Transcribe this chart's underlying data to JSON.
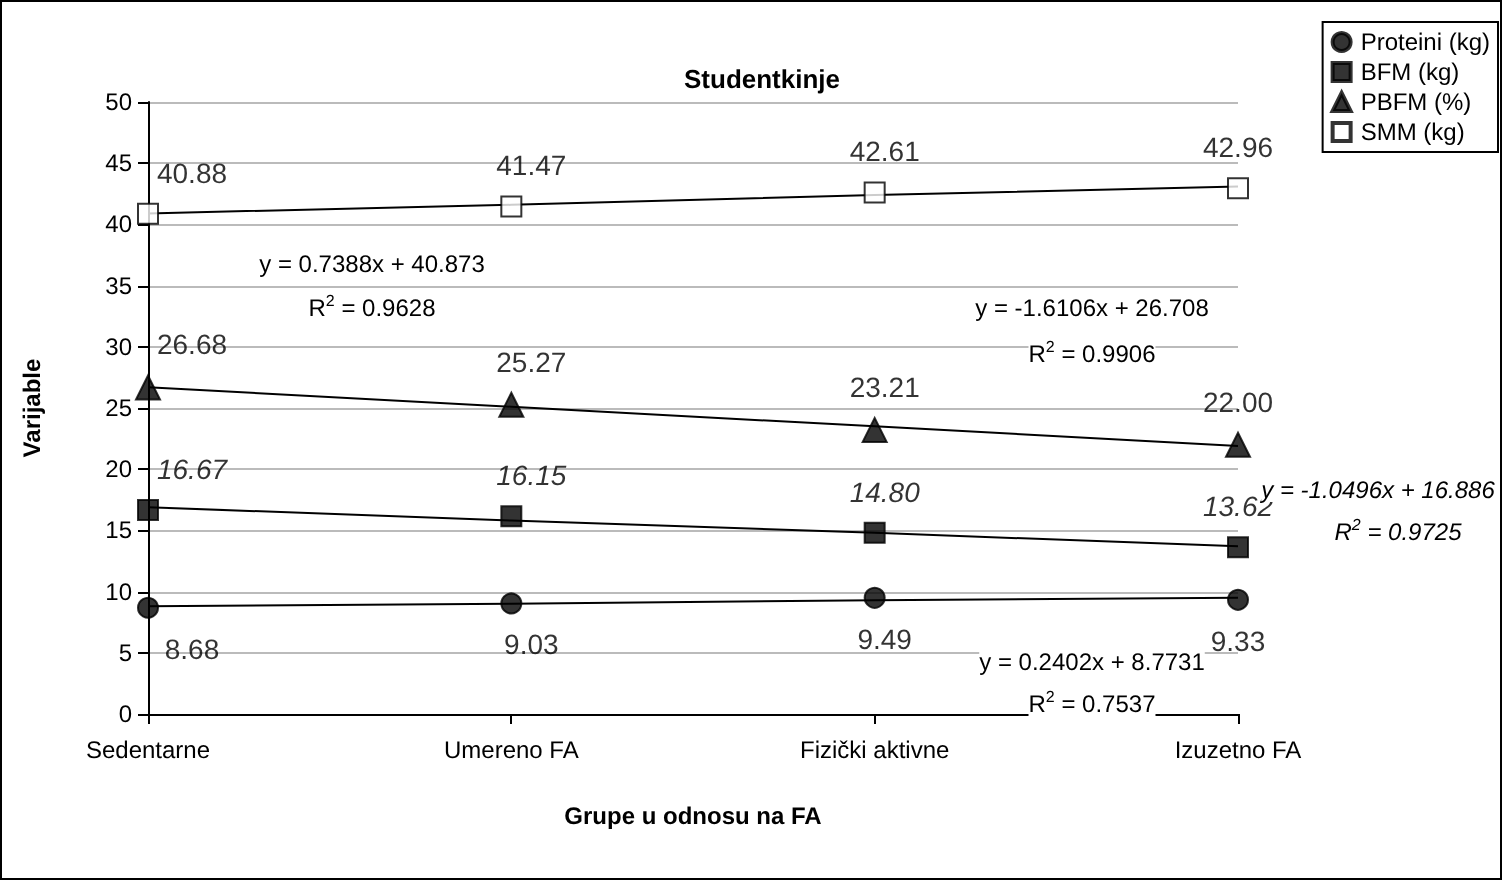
{
  "chart_data": {
    "type": "scatter",
    "title": "Studentkinje",
    "xlabel": "Grupe u odnosu na FA",
    "ylabel": "Varijable",
    "categories": [
      "Sedentarne",
      "Umereno FA",
      "Fizički aktivne",
      "Izuzetno FA"
    ],
    "series": [
      {
        "name": "Proteini (kg)",
        "color": "#000000",
        "marker": "circle",
        "values": [
          8.68,
          9.03,
          9.49,
          9.33
        ],
        "value_labels": [
          "8.68",
          "9.03",
          "9.49",
          "9.33"
        ]
      },
      {
        "name": "BFM (kg)",
        "color": "#000000",
        "marker": "square",
        "values": [
          16.67,
          16.15,
          14.8,
          13.62
        ],
        "value_labels": [
          "16.67",
          "16.15",
          "14.80",
          "13.62"
        ]
      },
      {
        "name": "PBFM (%)",
        "color": "#000000",
        "marker": "triangle",
        "values": [
          26.68,
          25.27,
          23.21,
          22.0
        ],
        "value_labels": [
          "26.68",
          "25.27",
          "23.21",
          "22.00"
        ]
      },
      {
        "name": "SMM (kg)",
        "color": "#ffffff",
        "marker": "square",
        "values": [
          40.88,
          41.47,
          42.61,
          42.96
        ],
        "value_labels": [
          "40.88",
          "41.47",
          "42.61",
          "42.96"
        ]
      },
      {
        "type": "line",
        "color": "#000000",
        "values": [
          40.9,
          41.6,
          42.4,
          43.1
        ]
      },
      {
        "type": "line",
        "color": "#000000",
        "values": [
          26.7,
          25.1,
          23.5,
          21.9
        ]
      },
      {
        "type": "line",
        "color": "#000000",
        "values": [
          16.9,
          15.8,
          14.8,
          13.7
        ]
      },
      {
        "type": "line",
        "color": "#000000",
        "values": [
          8.8,
          9.0,
          9.3,
          9.5
        ]
      }
    ],
    "ylim": [
      0,
      50
    ],
    "yticks": [
      0,
      5,
      10,
      15,
      20,
      25,
      30,
      35,
      40,
      45,
      50
    ],
    "grid": "y",
    "legend": "top right",
    "annotations": [
      "y = 0.7388x + 40.873",
      "R$^{2}$ = 0.9628",
      "y = -1.6106x + 26.708",
      "R$^{2}$ = 0.9906",
      "y = -1.0496x + 16.886",
      "R$^{2}$ = 0.9725",
      "y = 0.2402x + 8.7731",
      "R$^{2}$ = 0.7537"
    ]
  }
}
